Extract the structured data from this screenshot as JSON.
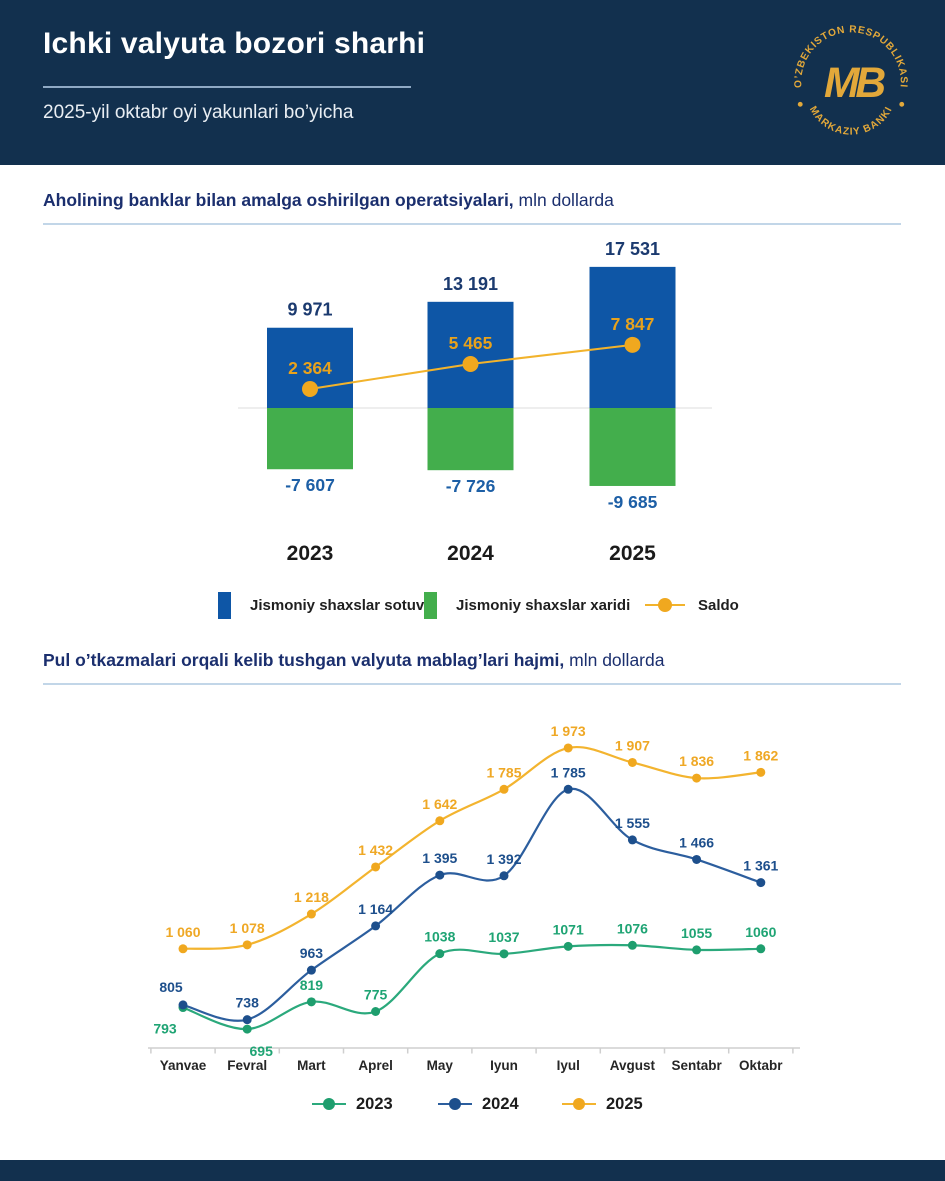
{
  "header": {
    "title": "Ichki valyuta bozori sharhi",
    "subtitle": "2025-yil oktabr oyi yakunlari bo’yicha",
    "logo": {
      "top_text": "O’ZBEKISTON RESPUBLIKASI",
      "bottom_text": "MARKAZIY BANKI",
      "monogram": "MB"
    }
  },
  "section1": {
    "title_bold": "Aholining banklar bilan amalga oshirilgan operatsiyalari,",
    "title_rest": " mln dollarda"
  },
  "section2": {
    "title_bold": "Pul o’tkazmalari orqali kelib tushgan valyuta mablag’lari hajmi,",
    "title_rest": " mln dollarda"
  },
  "colors": {
    "header_bg": "#12304E",
    "accent_gold": "#E2A83A",
    "section_title": "#1B2F6E",
    "zero_line": "#DCDCDC",
    "axis_line": "#CFCFCF"
  },
  "chart_data": [
    {
      "type": "bar",
      "title": "Aholining banklar bilan amalga oshirilgan operatsiyalari, mln dollarda",
      "categories": [
        "2023",
        "2024",
        "2025"
      ],
      "ylabel": "mln dollarda",
      "legend_position": "bottom",
      "grid": false,
      "series": [
        {
          "name": "Jismoniy shaxslar sotuvi",
          "type": "bar",
          "values": [
            9971,
            13191,
            17531
          ],
          "labels": [
            "9 971",
            "13 191",
            "17 531"
          ],
          "color": "#0E56A6",
          "label_color": "#1B3A6F"
        },
        {
          "name": "Jismoniy shaxslar xaridi",
          "type": "bar",
          "values": [
            -7607,
            -7726,
            -9685
          ],
          "labels": [
            "-7 607",
            "-7 726",
            "-9 685"
          ],
          "color": "#43AE4C",
          "label_color": "#1D5FA6"
        },
        {
          "name": "Saldo",
          "type": "line",
          "values": [
            2364,
            5465,
            7847
          ],
          "labels": [
            "2 364",
            "5 465",
            "7 847"
          ],
          "color": "#F2B32C",
          "dot_color": "#F0A81F",
          "label_color": "#E8A21C"
        }
      ]
    },
    {
      "type": "line",
      "title": "Pul o’tkazmalari orqali kelib tushgan valyuta mablag’lari hajmi, mln dollarda",
      "categories": [
        "Yanvae",
        "Fevral",
        "Mart",
        "Aprel",
        "May",
        "Iyun",
        "Iyul",
        "Avgust",
        "Sentabr",
        "Oktabr"
      ],
      "ylabel": "mln dollarda",
      "legend_position": "bottom",
      "grid": false,
      "series": [
        {
          "name": "2023",
          "values": [
            793,
            695,
            819,
            775,
            1038,
            1037,
            1071,
            1076,
            1055,
            1060
          ],
          "labels": [
            "793",
            "695",
            "819",
            "775",
            "1038",
            "1037",
            "1071",
            "1076",
            "1055",
            "1060"
          ],
          "color": "#2BA97C",
          "dot_color": "#1E9E6E",
          "label_color": "#1FA474"
        },
        {
          "name": "2024",
          "values": [
            805,
            738,
            963,
            1164,
            1395,
            1392,
            1785,
            1555,
            1466,
            1361
          ],
          "labels": [
            "805",
            "738",
            "963",
            "1 164",
            "1 395",
            "1 392",
            "1 785",
            "1 555",
            "1 466",
            "1 361"
          ],
          "color": "#2C5E9E",
          "dot_color": "#1D4F8C",
          "label_color": "#1D4F8C"
        },
        {
          "name": "2025",
          "values": [
            1060,
            1078,
            1218,
            1432,
            1642,
            1785,
            1973,
            1907,
            1836,
            1862
          ],
          "labels": [
            "1 060",
            "1 078",
            "1 218",
            "1 432",
            "1 642",
            "1 785",
            "1 973",
            "1 907",
            "1 836",
            "1 862"
          ],
          "color": "#F3B42F",
          "dot_color": "#F0A81F",
          "label_color": "#EFA825"
        }
      ]
    }
  ]
}
